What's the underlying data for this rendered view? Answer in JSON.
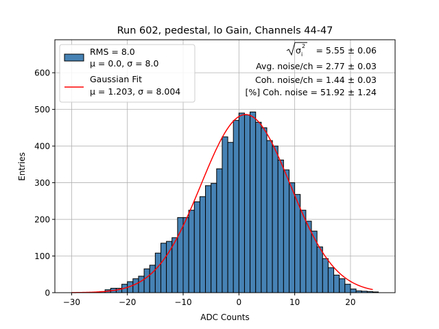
{
  "chart_data": {
    "type": "bar",
    "title": "Run 602, pedestal, lo Gain, Channels 44-47",
    "xlabel": "ADC Counts",
    "ylabel": "Entries",
    "xlim": [
      -33,
      28
    ],
    "ylim": [
      0,
      690
    ],
    "xticks": [
      -30,
      -20,
      -10,
      0,
      10,
      20
    ],
    "yticks": [
      0,
      100,
      200,
      300,
      400,
      500,
      600
    ],
    "grid": true,
    "bin_width": 1,
    "bin_start": -25,
    "histogram_values": [
      3,
      8,
      12,
      12,
      23,
      30,
      38,
      45,
      65,
      75,
      108,
      135,
      140,
      150,
      205,
      205,
      225,
      248,
      262,
      292,
      298,
      338,
      425,
      410,
      470,
      490,
      485,
      493,
      465,
      450,
      415,
      400,
      362,
      335,
      300,
      268,
      225,
      195,
      168,
      125,
      93,
      68,
      48,
      38,
      23,
      10,
      5,
      4,
      3,
      2
    ],
    "histogram_color": "#4682b4",
    "fit": {
      "mu": 1.203,
      "sigma": 8.004,
      "amplitude": 486,
      "x_start": -30,
      "x_end": 24,
      "color": "#ff0000"
    },
    "legend": [
      {
        "type": "patch",
        "line1": "RMS = 8.0",
        "line2": "μ = 0.0, σ = 8.0"
      },
      {
        "type": "line",
        "line1": "Gaussian Fit",
        "line2": "μ = 1.203, σ = 8.004"
      }
    ],
    "annotations": {
      "sigma_label": "σ",
      "sigma_sub": "i",
      "sigma_sup": "2",
      "sigma_value": " = 5.55 ± 0.06",
      "avg_noise": "Avg. noise/ch = 2.77 ± 0.03",
      "coh_noise": "Coh. noise/ch = 1.44 ± 0.03",
      "coh_percent": "[%] Coh. noise = 51.92 ± 1.24"
    }
  }
}
